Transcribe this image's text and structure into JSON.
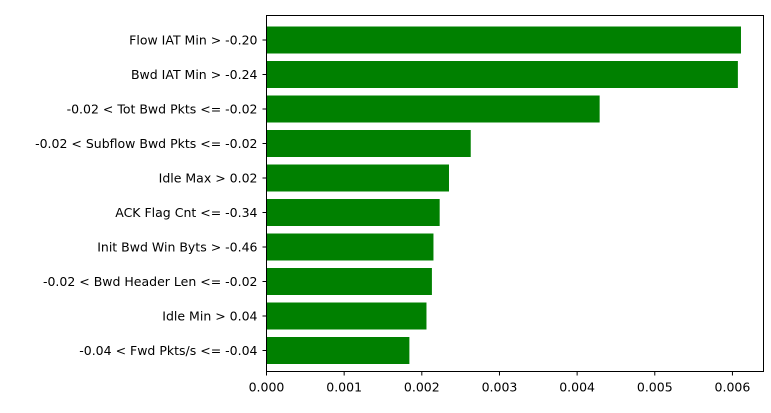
{
  "chart_data": {
    "type": "bar",
    "orientation": "horizontal",
    "title": "",
    "xlabel": "",
    "ylabel": "",
    "bar_color": "#008000",
    "xlim": [
      0,
      0.0064
    ],
    "xticks": [
      0.0,
      0.001,
      0.002,
      0.003,
      0.004,
      0.005,
      0.006
    ],
    "xtick_labels": [
      "0.000",
      "0.001",
      "0.002",
      "0.003",
      "0.004",
      "0.005",
      "0.006"
    ],
    "categories": [
      "Flow IAT Min > -0.20",
      "Bwd IAT Min > -0.24",
      "-0.02 < Tot Bwd Pkts <= -0.02",
      "-0.02 < Subflow Bwd Pkts <= -0.02",
      "Idle Max > 0.02",
      "ACK Flag Cnt <= -0.34",
      "Init Bwd Win Byts > -0.46",
      "-0.02 < Bwd Header Len <= -0.02",
      "Idle Min > 0.04",
      "-0.04 < Fwd Pkts/s <= -0.04"
    ],
    "values": [
      0.00611,
      0.00607,
      0.00429,
      0.00263,
      0.00235,
      0.00223,
      0.00215,
      0.00213,
      0.00206,
      0.00184
    ],
    "grid": false,
    "legend": "none"
  }
}
